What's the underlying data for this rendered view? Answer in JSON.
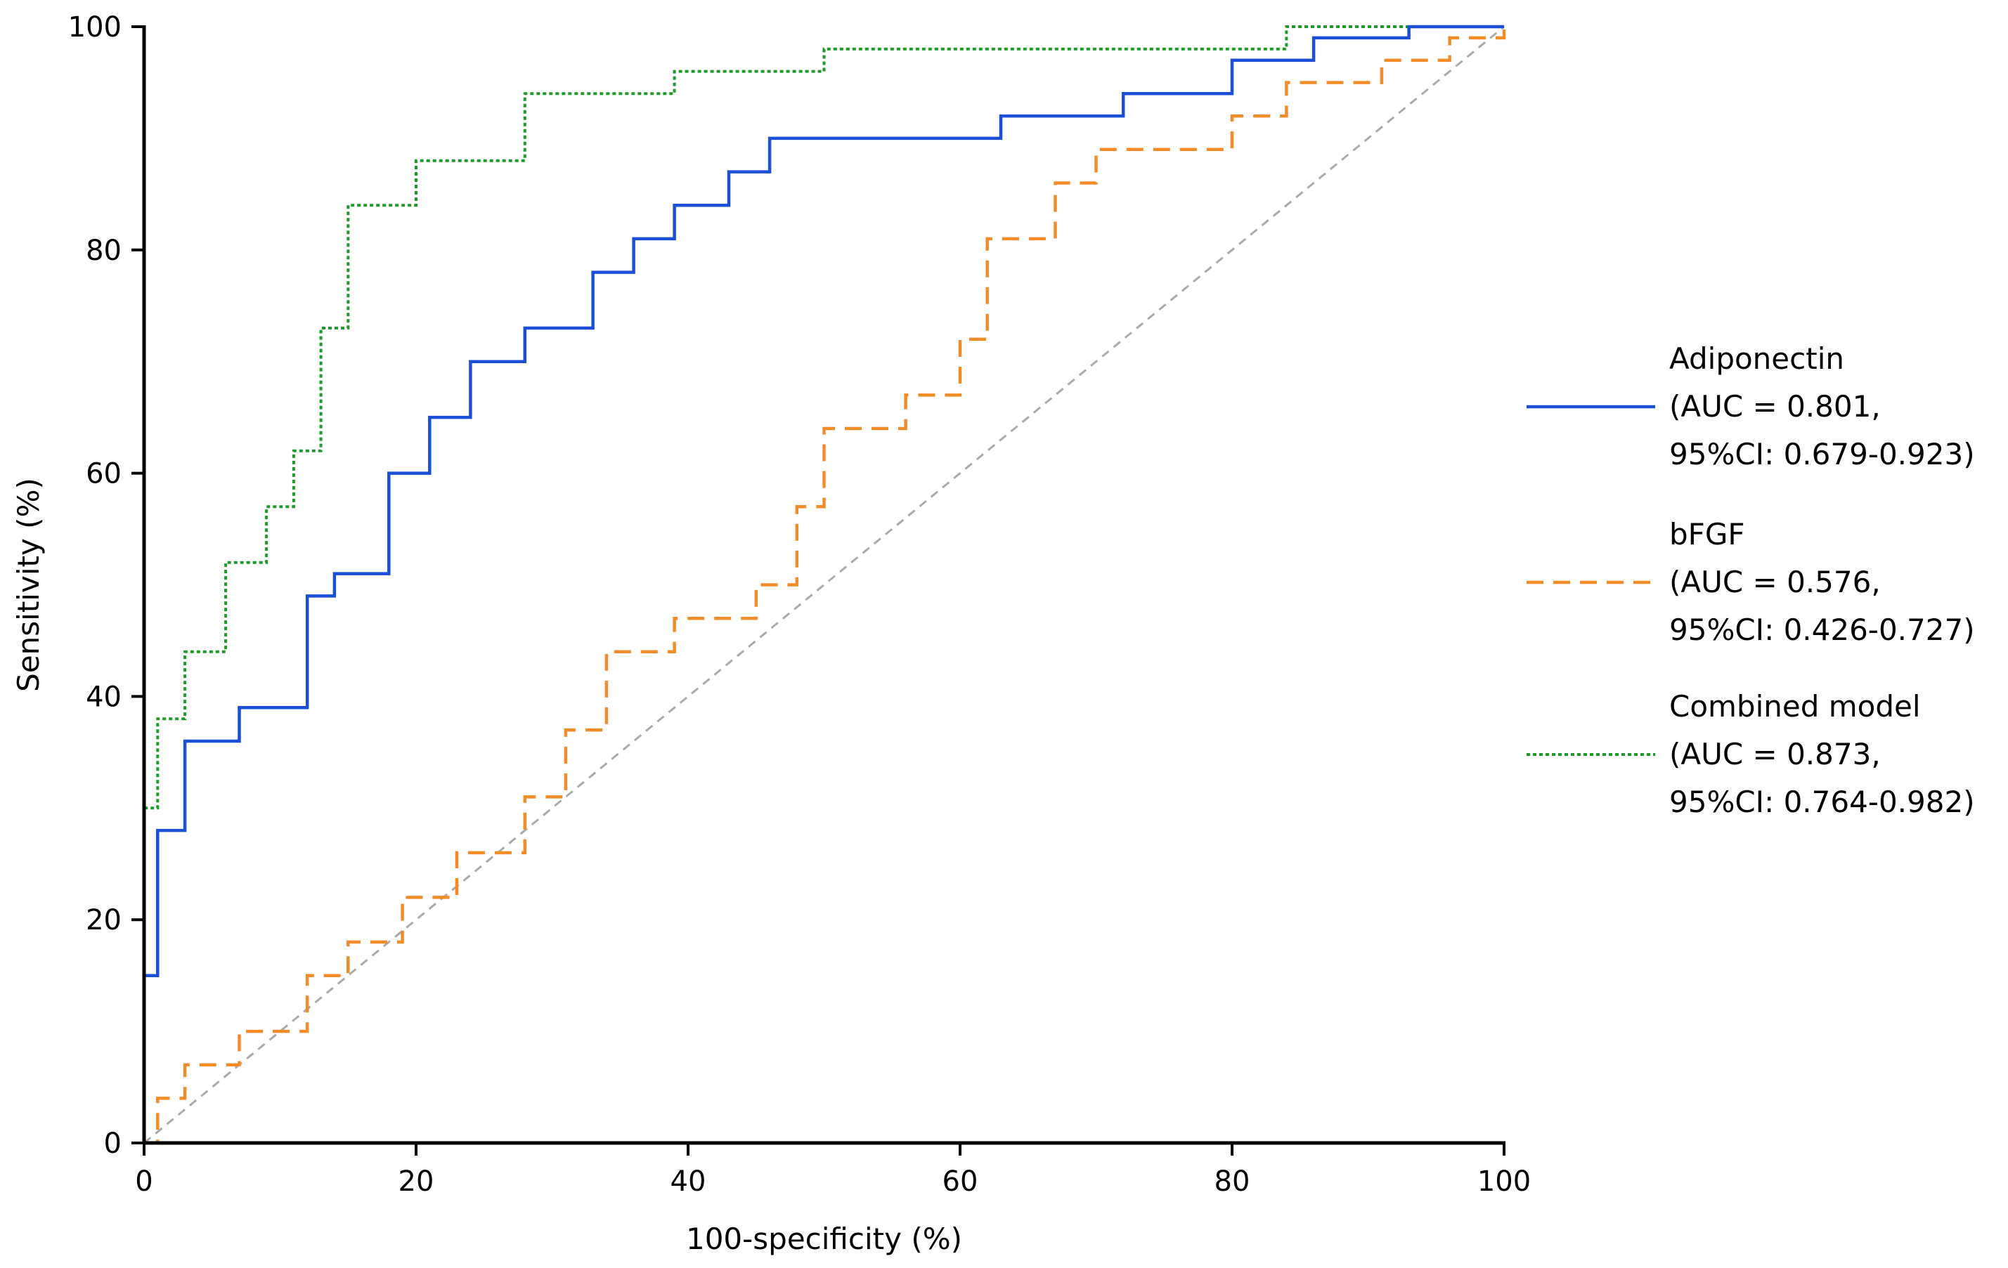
{
  "chart_data": {
    "type": "line",
    "title": "",
    "xlabel": "100-specificity (%)",
    "ylabel": "Sensitivity (%)",
    "xlim": [
      0,
      100
    ],
    "ylim": [
      0,
      100
    ],
    "xticks": [
      0,
      20,
      40,
      60,
      80,
      100
    ],
    "yticks": [
      0,
      20,
      40,
      60,
      80,
      100
    ],
    "grid": false,
    "legend_position": "right",
    "reference_line": {
      "from": [
        0,
        0
      ],
      "to": [
        100,
        100
      ],
      "color": "#aaaaaa",
      "style": "dashed"
    },
    "series": [
      {
        "legend": [
          "Adiponectin",
          "(AUC = 0.801,",
          "95%CI: 0.679-0.923)"
        ],
        "color": "#1a4fd6",
        "style": "solid",
        "points": [
          [
            0,
            0
          ],
          [
            0,
            15
          ],
          [
            1,
            15
          ],
          [
            1,
            28
          ],
          [
            3,
            28
          ],
          [
            3,
            36
          ],
          [
            7,
            36
          ],
          [
            7,
            39
          ],
          [
            12,
            39
          ],
          [
            12,
            49
          ],
          [
            14,
            49
          ],
          [
            14,
            51
          ],
          [
            18,
            51
          ],
          [
            18,
            60
          ],
          [
            21,
            60
          ],
          [
            21,
            65
          ],
          [
            24,
            65
          ],
          [
            24,
            70
          ],
          [
            28,
            70
          ],
          [
            28,
            73
          ],
          [
            33,
            73
          ],
          [
            33,
            78
          ],
          [
            36,
            78
          ],
          [
            36,
            81
          ],
          [
            39,
            81
          ],
          [
            39,
            84
          ],
          [
            43,
            84
          ],
          [
            43,
            87
          ],
          [
            46,
            87
          ],
          [
            46,
            90
          ],
          [
            63,
            90
          ],
          [
            63,
            92
          ],
          [
            72,
            92
          ],
          [
            72,
            94
          ],
          [
            80,
            94
          ],
          [
            80,
            97
          ],
          [
            86,
            97
          ],
          [
            86,
            99
          ],
          [
            93,
            99
          ],
          [
            93,
            100
          ],
          [
            100,
            100
          ]
        ]
      },
      {
        "legend": [
          "bFGF",
          "(AUC = 0.576,",
          "95%CI: 0.426-0.727)"
        ],
        "color": "#f28c28",
        "style": "dashed",
        "points": [
          [
            0,
            0
          ],
          [
            1,
            0
          ],
          [
            1,
            4
          ],
          [
            3,
            4
          ],
          [
            3,
            7
          ],
          [
            7,
            7
          ],
          [
            7,
            10
          ],
          [
            12,
            10
          ],
          [
            12,
            15
          ],
          [
            15,
            15
          ],
          [
            15,
            18
          ],
          [
            19,
            18
          ],
          [
            19,
            22
          ],
          [
            23,
            22
          ],
          [
            23,
            26
          ],
          [
            28,
            26
          ],
          [
            28,
            31
          ],
          [
            31,
            31
          ],
          [
            31,
            37
          ],
          [
            34,
            37
          ],
          [
            34,
            44
          ],
          [
            39,
            44
          ],
          [
            39,
            47
          ],
          [
            45,
            47
          ],
          [
            45,
            50
          ],
          [
            48,
            50
          ],
          [
            48,
            57
          ],
          [
            50,
            57
          ],
          [
            50,
            64
          ],
          [
            56,
            64
          ],
          [
            56,
            67
          ],
          [
            60,
            67
          ],
          [
            60,
            72
          ],
          [
            62,
            72
          ],
          [
            62,
            81
          ],
          [
            67,
            81
          ],
          [
            67,
            86
          ],
          [
            70,
            86
          ],
          [
            70,
            89
          ],
          [
            80,
            89
          ],
          [
            80,
            92
          ],
          [
            84,
            92
          ],
          [
            84,
            95
          ],
          [
            91,
            95
          ],
          [
            91,
            97
          ],
          [
            96,
            97
          ],
          [
            96,
            99
          ],
          [
            100,
            99
          ],
          [
            100,
            100
          ]
        ]
      },
      {
        "legend": [
          "Combined model",
          "(AUC = 0.873,",
          "95%CI: 0.764-0.982)"
        ],
        "color": "#1e9a2a",
        "style": "dotted",
        "points": [
          [
            0,
            0
          ],
          [
            0,
            30
          ],
          [
            1,
            30
          ],
          [
            1,
            38
          ],
          [
            3,
            38
          ],
          [
            3,
            44
          ],
          [
            6,
            44
          ],
          [
            6,
            52
          ],
          [
            9,
            52
          ],
          [
            9,
            57
          ],
          [
            11,
            57
          ],
          [
            11,
            62
          ],
          [
            13,
            62
          ],
          [
            13,
            73
          ],
          [
            15,
            73
          ],
          [
            15,
            84
          ],
          [
            20,
            84
          ],
          [
            20,
            88
          ],
          [
            28,
            88
          ],
          [
            28,
            94
          ],
          [
            39,
            94
          ],
          [
            39,
            96
          ],
          [
            50,
            96
          ],
          [
            50,
            98
          ],
          [
            84,
            98
          ],
          [
            84,
            100
          ],
          [
            100,
            100
          ]
        ]
      }
    ]
  }
}
